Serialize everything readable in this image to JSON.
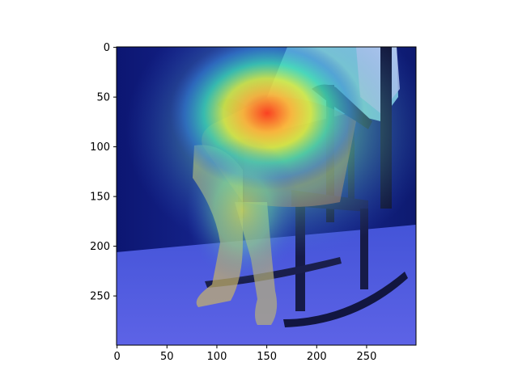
{
  "figure": {
    "description_visible": "",
    "image": {
      "subject_icon": "woman-in-rocking-chair-heatmap-image",
      "heatmap_colormap": "jet",
      "heatmap_peak_region": "lap / thigh area"
    },
    "axes": {
      "x_ticks": [
        {
          "value": 0,
          "label": "0"
        },
        {
          "value": 50,
          "label": "50"
        },
        {
          "value": 100,
          "label": "100"
        },
        {
          "value": 150,
          "label": "150"
        },
        {
          "value": 200,
          "label": "200"
        },
        {
          "value": 250,
          "label": "250"
        }
      ],
      "y_ticks": [
        {
          "value": 0,
          "label": "0"
        },
        {
          "value": 50,
          "label": "50"
        },
        {
          "value": 100,
          "label": "100"
        },
        {
          "value": 150,
          "label": "150"
        },
        {
          "value": 200,
          "label": "200"
        },
        {
          "value": 250,
          "label": "250"
        }
      ],
      "x_range": [
        0,
        299
      ],
      "y_range": [
        0,
        299
      ]
    }
  }
}
